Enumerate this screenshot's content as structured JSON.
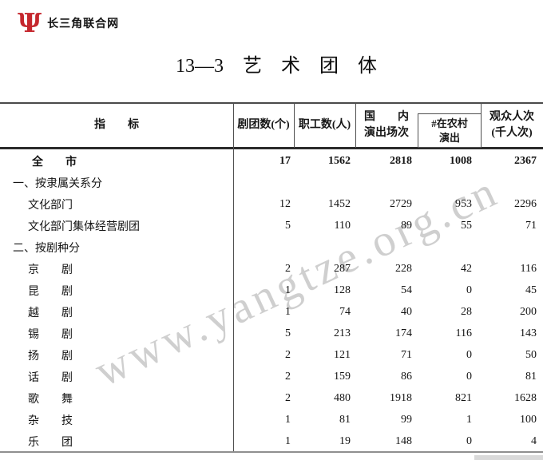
{
  "logo": {
    "site_name": "长三角联合网",
    "brand_color": "#c5272d"
  },
  "title": "13—3　艺　术　团　体",
  "watermark": {
    "text": "www.yangtze.org.cn"
  },
  "table": {
    "header": {
      "indicator": "指　　标",
      "columns": [
        {
          "id": "troupes-count",
          "lines": [
            "剧团数(个)",
            ""
          ]
        },
        {
          "id": "staff-count",
          "lines": [
            "职工数(人)",
            ""
          ]
        },
        {
          "id": "domestic-performances",
          "lines": [
            "国　　内",
            "演出场次"
          ]
        },
        {
          "id": "rural-performances",
          "lines": [
            "#在农村",
            "演出"
          ]
        },
        {
          "id": "audience",
          "lines": [
            "观众人次",
            "(千人次)"
          ]
        }
      ]
    },
    "rows": [
      {
        "label": "全　　市",
        "style": "total",
        "values": [
          "17",
          "1562",
          "2818",
          "1008",
          "2367"
        ]
      },
      {
        "label": "一、按隶属关系分",
        "style": "section",
        "values": [
          "",
          "",
          "",
          "",
          ""
        ]
      },
      {
        "label": "文化部门",
        "style": "item",
        "values": [
          "12",
          "1452",
          "2729",
          "953",
          "2296"
        ]
      },
      {
        "label": "文化部门集体经营剧团",
        "style": "item",
        "values": [
          "5",
          "110",
          "89",
          "55",
          "71"
        ]
      },
      {
        "label": "二、按剧种分",
        "style": "section",
        "values": [
          "",
          "",
          "",
          "",
          ""
        ]
      },
      {
        "label": "京　　剧",
        "style": "item",
        "values": [
          "2",
          "287",
          "228",
          "42",
          "116"
        ]
      },
      {
        "label": "昆　　剧",
        "style": "item",
        "values": [
          "1",
          "128",
          "54",
          "0",
          "45"
        ]
      },
      {
        "label": "越　　剧",
        "style": "item",
        "values": [
          "1",
          "74",
          "40",
          "28",
          "200"
        ]
      },
      {
        "label": "锡　　剧",
        "style": "item",
        "values": [
          "5",
          "213",
          "174",
          "116",
          "143"
        ]
      },
      {
        "label": "扬　　剧",
        "style": "item",
        "values": [
          "2",
          "121",
          "71",
          "0",
          "50"
        ]
      },
      {
        "label": "话　　剧",
        "style": "item",
        "values": [
          "2",
          "159",
          "86",
          "0",
          "81"
        ]
      },
      {
        "label": "歌　　舞",
        "style": "item",
        "values": [
          "2",
          "480",
          "1918",
          "821",
          "1628"
        ]
      },
      {
        "label": "杂　　技",
        "style": "item",
        "values": [
          "1",
          "81",
          "99",
          "1",
          "100"
        ]
      },
      {
        "label": "乐　　团",
        "style": "item",
        "values": [
          "1",
          "19",
          "148",
          "0",
          "4"
        ]
      }
    ]
  }
}
